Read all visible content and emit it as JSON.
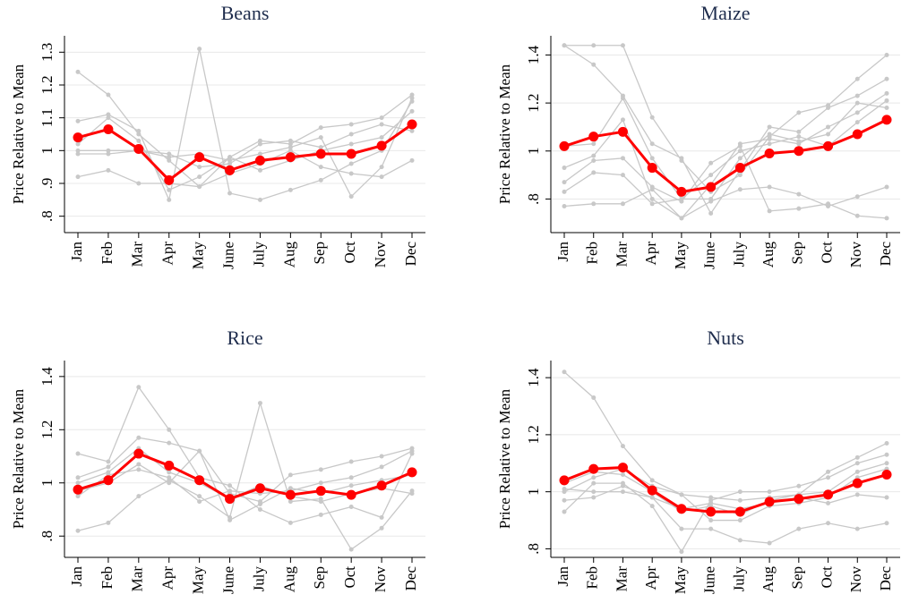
{
  "chart_data": [
    {
      "type": "line",
      "title": "Beans",
      "y_label": "Price Relative to Mean",
      "categories": [
        "Jan",
        "Feb",
        "Mar",
        "Apr",
        "May",
        "June",
        "July",
        "Aug",
        "Sep",
        "Oct",
        "Nov",
        "Dec"
      ],
      "ylim": [
        0.75,
        1.35
      ],
      "yticks": [
        {
          "value": 0.8,
          "label": ".8"
        },
        {
          "value": 0.9,
          "label": ".9"
        },
        1,
        1.1,
        1.2,
        1.3
      ],
      "grid": true,
      "series": [
        {
          "color": "#c8c8c8",
          "values": [
            1.24,
            1.17,
            1.05,
            0.97,
            0.89,
            0.98,
            1.03,
            1.02,
            1.07,
            1.08,
            1.1,
            1.17
          ]
        },
        {
          "color": "#c8c8c8",
          "values": [
            1.09,
            1.11,
            1.06,
            0.85,
            1.31,
            0.87,
            0.85,
            0.88,
            0.91,
            0.96,
            1.0,
            1.15
          ]
        },
        {
          "color": "#c8c8c8",
          "values": [
            1.0,
            1.0,
            1.0,
            0.98,
            0.99,
            0.97,
            0.99,
            1.01,
            1.04,
            0.86,
            0.95,
            1.16
          ]
        },
        {
          "color": "#c8c8c8",
          "values": [
            0.92,
            0.94,
            0.9,
            0.9,
            0.89,
            0.93,
            0.96,
            1.0,
            0.95,
            0.93,
            0.92,
            0.97
          ]
        },
        {
          "color": "#c8c8c8",
          "values": [
            1.02,
            1.1,
            1.03,
            0.88,
            0.92,
            0.98,
            0.94,
            0.97,
            1.0,
            1.02,
            1.04,
            1.12
          ]
        },
        {
          "color": "#c8c8c8",
          "values": [
            0.99,
            0.99,
            1.0,
            0.99,
            0.95,
            0.96,
            1.02,
            1.03,
            1.01,
            1.05,
            1.08,
            1.06
          ]
        },
        {
          "color": "#ff0000",
          "values": [
            1.04,
            1.065,
            1.005,
            0.91,
            0.98,
            0.94,
            0.97,
            0.98,
            0.99,
            0.99,
            1.015,
            1.08
          ]
        }
      ]
    },
    {
      "type": "line",
      "title": "Maize",
      "y_label": "Price Relative to Mean",
      "categories": [
        "Jan",
        "Feb",
        "Mar",
        "Apr",
        "May",
        "June",
        "July",
        "Aug",
        "Sep",
        "Oct",
        "Nov",
        "Dec"
      ],
      "ylim": [
        0.66,
        1.48
      ],
      "yticks": [
        {
          "value": 0.8,
          "label": ".8"
        },
        1,
        1.2,
        1.4
      ],
      "grid": true,
      "series": [
        {
          "color": "#c8c8c8",
          "values": [
            1.44,
            1.44,
            1.44,
            1.14,
            0.96,
            0.83,
            0.9,
            1.06,
            1.16,
            1.19,
            1.3,
            1.4
          ]
        },
        {
          "color": "#c8c8c8",
          "values": [
            1.44,
            1.36,
            1.23,
            1.03,
            0.97,
            0.74,
            0.92,
            1.1,
            1.08,
            1.18,
            1.23,
            1.3
          ]
        },
        {
          "color": "#c8c8c8",
          "values": [
            0.77,
            0.78,
            0.78,
            0.84,
            0.72,
            0.79,
            0.84,
            0.85,
            0.82,
            0.77,
            0.81,
            0.85
          ]
        },
        {
          "color": "#c8c8c8",
          "values": [
            0.87,
            0.96,
            0.97,
            0.85,
            0.79,
            0.95,
            1.02,
            0.75,
            0.76,
            0.78,
            0.73,
            0.72
          ]
        },
        {
          "color": "#c8c8c8",
          "values": [
            0.93,
            0.98,
            1.13,
            0.8,
            0.72,
            0.86,
            1.03,
            1.05,
            1.03,
            1.1,
            1.16,
            1.24
          ]
        },
        {
          "color": "#c8c8c8",
          "values": [
            0.83,
            0.91,
            0.9,
            0.78,
            0.8,
            0.9,
            1.0,
            1.03,
            1.06,
            1.02,
            1.12,
            1.21
          ]
        },
        {
          "color": "#c8c8c8",
          "values": [
            1.02,
            1.03,
            1.22,
            0.97,
            0.8,
            0.8,
            0.97,
            1.07,
            1.04,
            1.07,
            1.2,
            1.18
          ]
        },
        {
          "color": "#ff0000",
          "values": [
            1.02,
            1.06,
            1.08,
            0.93,
            0.83,
            0.85,
            0.93,
            0.99,
            1.0,
            1.02,
            1.07,
            1.13
          ]
        }
      ]
    },
    {
      "type": "line",
      "title": "Rice",
      "y_label": "Price Relative to Mean",
      "categories": [
        "Jan",
        "Feb",
        "Mar",
        "Apr",
        "May",
        "June",
        "July",
        "Aug",
        "Sep",
        "Oct",
        "Nov",
        "Dec"
      ],
      "ylim": [
        0.72,
        1.46
      ],
      "yticks": [
        {
          "value": 0.8,
          "label": ".8"
        },
        1,
        1.2,
        1.4
      ],
      "grid": true,
      "series": [
        {
          "color": "#c8c8c8",
          "values": [
            1.11,
            1.08,
            1.36,
            1.2,
            1.02,
            0.99,
            0.9,
            0.85,
            0.88,
            0.91,
            0.87,
            1.11
          ]
        },
        {
          "color": "#c8c8c8",
          "values": [
            0.82,
            0.85,
            0.95,
            1.01,
            0.95,
            0.87,
            1.3,
            0.93,
            0.94,
            0.75,
            0.83,
            0.97
          ]
        },
        {
          "color": "#c8c8c8",
          "values": [
            1.02,
            1.06,
            1.17,
            1.15,
            1.12,
            0.96,
            0.93,
            1.03,
            1.05,
            1.08,
            1.1,
            1.13
          ]
        },
        {
          "color": "#c8c8c8",
          "values": [
            0.95,
            1.03,
            1.05,
            1.02,
            0.93,
            0.97,
            0.96,
            0.97,
            1.0,
            1.02,
            1.06,
            1.12
          ]
        },
        {
          "color": "#c8c8c8",
          "values": [
            0.97,
            1.0,
            1.07,
            1.0,
            1.12,
            0.86,
            0.92,
            0.98,
            0.96,
            0.99,
            1.01,
            1.03
          ]
        },
        {
          "color": "#c8c8c8",
          "values": [
            1.0,
            1.04,
            1.13,
            1.04,
            1.0,
            0.94,
            0.99,
            0.95,
            0.93,
            0.96,
            0.98,
            0.96
          ]
        },
        {
          "color": "#ff0000",
          "values": [
            0.975,
            1.01,
            1.11,
            1.065,
            1.01,
            0.94,
            0.98,
            0.955,
            0.97,
            0.955,
            0.99,
            1.04
          ]
        }
      ]
    },
    {
      "type": "line",
      "title": "Nuts",
      "y_label": "Price Relative to Mean",
      "categories": [
        "Jan",
        "Feb",
        "Mar",
        "Apr",
        "May",
        "June",
        "July",
        "Aug",
        "Sep",
        "Oct",
        "Nov",
        "Dec"
      ],
      "ylim": [
        0.77,
        1.46
      ],
      "yticks": [
        {
          "value": 0.8,
          "label": ".8"
        },
        1,
        1.2,
        1.4
      ],
      "grid": true,
      "series": [
        {
          "color": "#c8c8c8",
          "values": [
            1.42,
            1.33,
            1.16,
            1.04,
            0.99,
            0.98,
            0.97,
            0.98,
            0.99,
            1.07,
            1.12,
            1.17
          ]
        },
        {
          "color": "#c8c8c8",
          "values": [
            0.93,
            1.03,
            1.03,
            0.95,
            0.79,
            0.97,
            1.0,
            1.0,
            1.02,
            1.05,
            1.1,
            1.13
          ]
        },
        {
          "color": "#c8c8c8",
          "values": [
            0.97,
            0.98,
            1.02,
            0.98,
            0.87,
            0.87,
            0.83,
            0.82,
            0.87,
            0.89,
            0.87,
            0.89
          ]
        },
        {
          "color": "#c8c8c8",
          "values": [
            1.0,
            1.05,
            1.08,
            1.02,
            0.99,
            0.9,
            0.9,
            0.95,
            0.96,
            0.98,
            1.05,
            1.08
          ]
        },
        {
          "color": "#c8c8c8",
          "values": [
            1.03,
            1.07,
            1.06,
            1.0,
            0.93,
            0.95,
            0.92,
            0.97,
            0.99,
            1.0,
            1.07,
            1.1
          ]
        },
        {
          "color": "#c8c8c8",
          "values": [
            1.01,
            1.0,
            1.0,
            0.98,
            0.94,
            0.96,
            0.94,
            0.96,
            0.98,
            0.96,
            0.99,
            0.98
          ]
        },
        {
          "color": "#ff0000",
          "values": [
            1.04,
            1.08,
            1.085,
            1.005,
            0.94,
            0.93,
            0.93,
            0.965,
            0.975,
            0.99,
            1.03,
            1.06
          ]
        }
      ]
    }
  ]
}
